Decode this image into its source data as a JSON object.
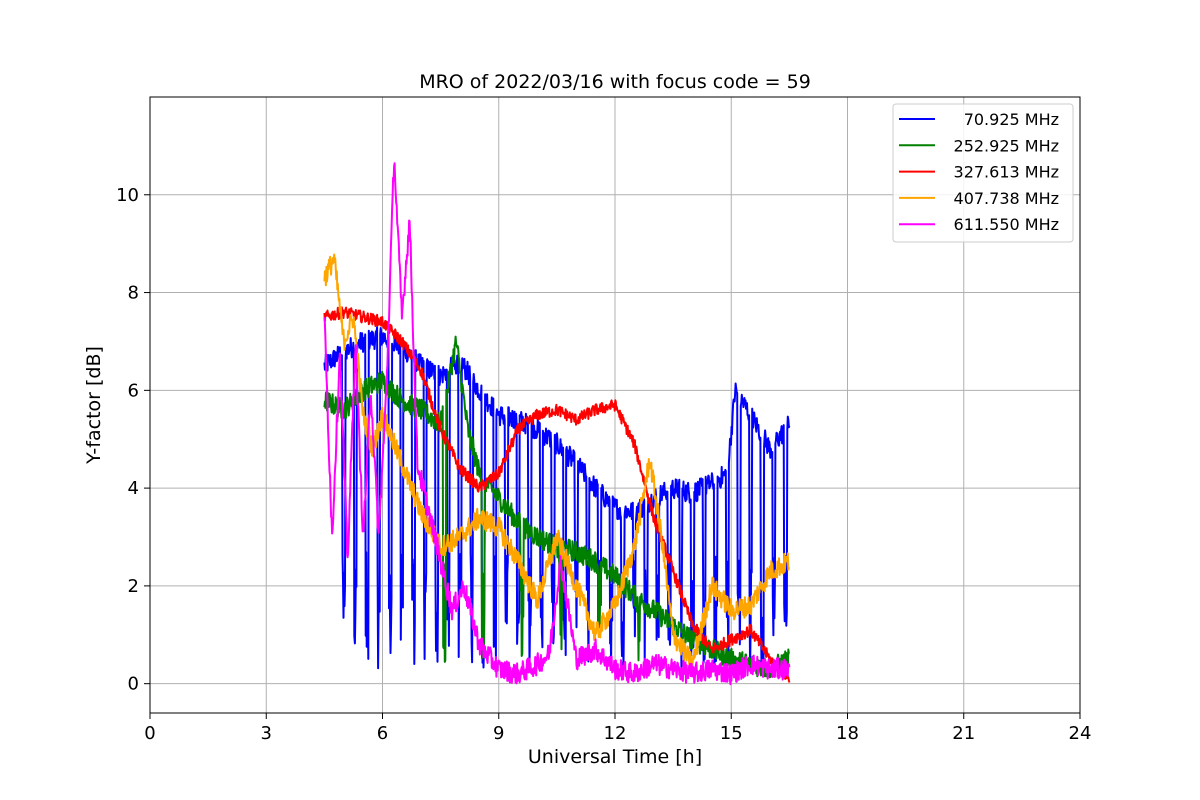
{
  "chart_data": {
    "type": "line",
    "title": "MRO of 2022/03/16 with focus code = 59",
    "xlabel": "Universal Time [h]",
    "ylabel": "Y-factor [dB]",
    "xlim": [
      0,
      24
    ],
    "ylim": [
      -0.6,
      12
    ],
    "xticks": [
      0,
      3,
      6,
      9,
      12,
      15,
      18,
      21,
      24
    ],
    "yticks": [
      0,
      2,
      4,
      6,
      8,
      10
    ],
    "grid": true,
    "legend_position": "top-right",
    "series": [
      {
        "name": "70.925 MHz",
        "color": "#0000ff",
        "x": [
          4.5,
          5.0,
          5.5,
          6.0,
          6.5,
          7.0,
          7.5,
          8.0,
          8.5,
          9.0,
          9.5,
          10.0,
          10.5,
          11.0,
          11.5,
          12.0,
          12.5,
          13.0,
          13.5,
          14.0,
          14.5,
          14.9,
          15.1,
          15.5,
          16.0,
          16.5
        ],
        "y": [
          6.5,
          6.8,
          7.0,
          7.1,
          6.9,
          6.5,
          6.3,
          6.6,
          6.0,
          5.5,
          5.4,
          5.2,
          4.9,
          4.5,
          4.0,
          3.6,
          3.5,
          3.8,
          4.0,
          3.9,
          4.1,
          4.3,
          6.0,
          5.5,
          4.8,
          5.3
        ],
        "dips": [
          5.0,
          5.3,
          5.6,
          5.9,
          6.2,
          6.5,
          6.8,
          7.1,
          7.4,
          7.7,
          8.0,
          8.3,
          8.6,
          8.9,
          9.2,
          9.5,
          9.8,
          10.1,
          10.4,
          10.7,
          11.0,
          11.3,
          11.6,
          11.9,
          12.2,
          12.5,
          12.8,
          13.1,
          13.4,
          13.7,
          14.0,
          14.3,
          14.6,
          14.9,
          15.2,
          15.5,
          15.8,
          16.1,
          16.4
        ]
      },
      {
        "name": "252.925 MHz",
        "color": "#008000",
        "x": [
          4.5,
          5.0,
          5.5,
          6.0,
          6.5,
          7.0,
          7.5,
          7.9,
          8.2,
          8.5,
          9.0,
          9.5,
          10.0,
          10.5,
          11.0,
          11.5,
          12.0,
          12.5,
          13.0,
          13.5,
          14.0,
          14.5,
          15.0,
          15.5,
          16.0,
          16.5
        ],
        "y": [
          5.8,
          5.6,
          6.0,
          6.2,
          5.8,
          5.6,
          5.3,
          7.0,
          5.2,
          4.3,
          3.8,
          3.3,
          3.0,
          2.8,
          2.7,
          2.5,
          2.2,
          1.8,
          1.5,
          1.2,
          0.9,
          0.7,
          0.5,
          0.4,
          0.3,
          0.5
        ],
        "dips": [
          7.6,
          8.6,
          9.6,
          10.6,
          11.6,
          12.6
        ]
      },
      {
        "name": "327.613 MHz",
        "color": "#ff0000",
        "x": [
          4.5,
          5.0,
          5.5,
          6.0,
          6.5,
          7.0,
          7.5,
          8.0,
          8.5,
          9.0,
          9.5,
          10.0,
          10.5,
          11.0,
          11.5,
          12.0,
          12.5,
          13.0,
          13.5,
          14.0,
          14.5,
          15.0,
          15.5,
          16.0,
          16.5
        ],
        "y": [
          7.5,
          7.6,
          7.5,
          7.4,
          7.0,
          6.4,
          5.2,
          4.4,
          4.0,
          4.3,
          5.2,
          5.5,
          5.6,
          5.4,
          5.6,
          5.7,
          4.9,
          3.4,
          2.3,
          1.2,
          0.7,
          0.9,
          1.1,
          0.5,
          0.1
        ],
        "dips": []
      },
      {
        "name": "407.738 MHz",
        "color": "#ffa500",
        "x": [
          4.5,
          4.75,
          5.0,
          5.25,
          5.5,
          5.75,
          6.0,
          6.5,
          7.0,
          7.5,
          8.0,
          8.5,
          9.0,
          9.5,
          10.0,
          10.5,
          11.0,
          11.5,
          12.0,
          12.5,
          12.9,
          13.2,
          13.5,
          14.0,
          14.5,
          15.0,
          15.5,
          16.0,
          16.5
        ],
        "y": [
          8.3,
          8.7,
          7.0,
          7.5,
          5.5,
          4.8,
          5.5,
          4.5,
          3.5,
          2.8,
          3.0,
          3.4,
          3.2,
          2.5,
          1.7,
          3.0,
          2.0,
          1.0,
          1.6,
          2.8,
          4.6,
          3.0,
          1.0,
          0.4,
          2.0,
          1.5,
          1.6,
          2.3,
          2.5
        ],
        "dips": []
      },
      {
        "name": "611.550 MHz",
        "color": "#ff00ff",
        "x": [
          4.5,
          4.7,
          4.9,
          5.1,
          5.3,
          5.5,
          5.7,
          5.9,
          6.1,
          6.3,
          6.5,
          6.7,
          6.9,
          7.2,
          7.5,
          7.8,
          8.1,
          8.5,
          9.0,
          9.5,
          10.0,
          10.3,
          10.6,
          11.0,
          11.5,
          12.0,
          12.5,
          13.0,
          13.5,
          14.0,
          14.5,
          15.0,
          15.5,
          16.0,
          16.5
        ],
        "y": [
          7.5,
          3.0,
          6.8,
          2.5,
          7.0,
          3.0,
          6.0,
          3.0,
          6.0,
          10.8,
          7.5,
          9.5,
          4.5,
          3.5,
          2.5,
          1.5,
          2.0,
          0.8,
          0.3,
          0.2,
          0.4,
          0.6,
          2.5,
          0.5,
          0.7,
          0.3,
          0.2,
          0.4,
          0.3,
          0.2,
          0.3,
          0.2,
          0.4,
          0.3,
          0.3
        ],
        "dips": []
      }
    ]
  }
}
